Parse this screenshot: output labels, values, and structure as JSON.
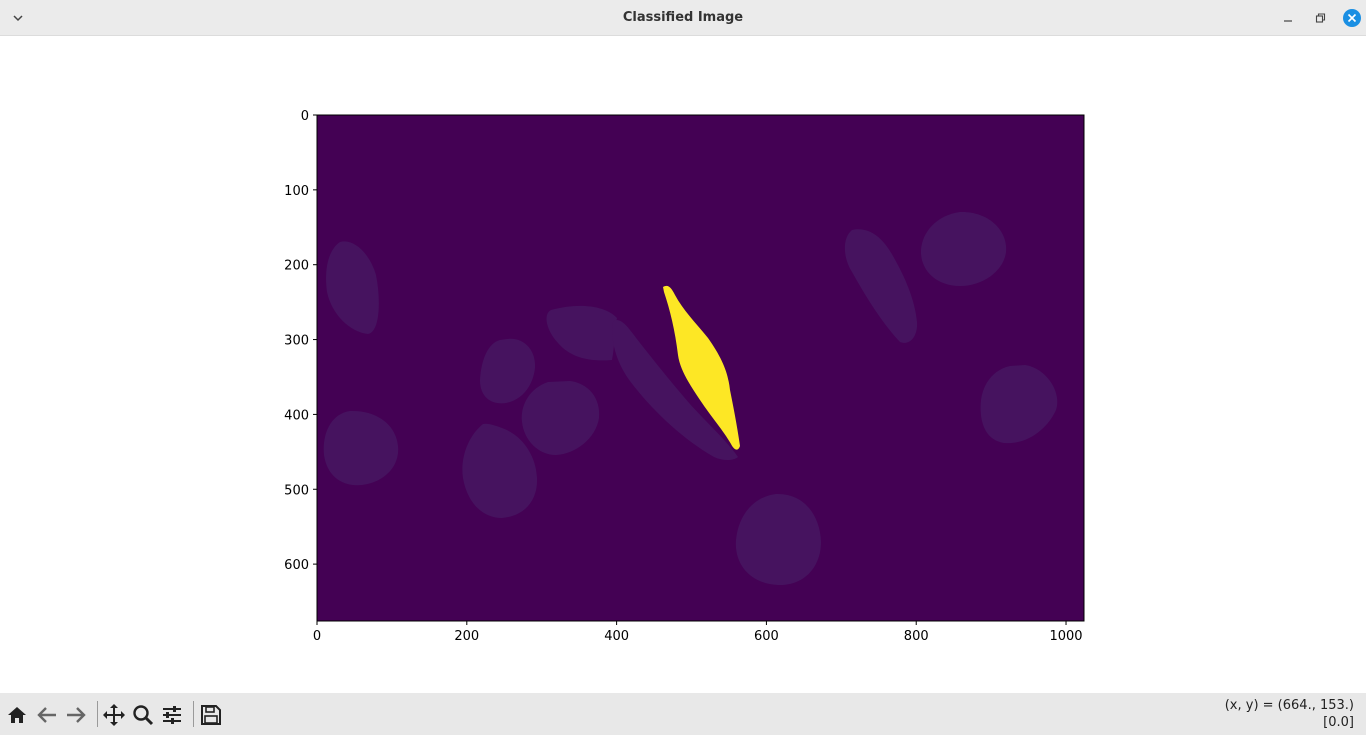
{
  "window": {
    "title": "Classified Image"
  },
  "toolbar": {
    "tools": [
      {
        "name": "home-icon"
      },
      {
        "name": "back-icon"
      },
      {
        "name": "forward-icon"
      },
      {
        "name": "pan-icon"
      },
      {
        "name": "zoom-icon"
      },
      {
        "name": "configure-subplots-icon"
      },
      {
        "name": "save-icon"
      }
    ]
  },
  "status": {
    "coords": "(x, y) = (664., 153.)",
    "value": "[0.0]"
  },
  "chart_data": {
    "type": "heatmap",
    "title": "",
    "xlabel": "",
    "ylabel": "",
    "xlim": [
      0,
      1024
    ],
    "ylim": [
      676,
      0
    ],
    "xticks": [
      0,
      200,
      400,
      600,
      800,
      1000
    ],
    "yticks": [
      0,
      100,
      200,
      300,
      400,
      500,
      600
    ],
    "colormap": "viridis",
    "colors": {
      "background": "#440154",
      "faint_region": "#46135f",
      "highlight_region": "#fde725"
    }
  }
}
